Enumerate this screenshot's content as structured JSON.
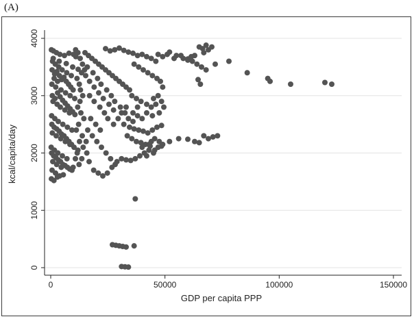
{
  "panel_label": "(A)",
  "chart_data": {
    "type": "scatter",
    "title": "",
    "xlabel": "GDP per capita PPP",
    "ylabel": "kcal/capita/day",
    "xlim": [
      0,
      150000
    ],
    "ylim": [
      0,
      4000
    ],
    "xticks": [
      0,
      50000,
      100000,
      150000
    ],
    "xtick_labels": [
      "0",
      "50000",
      "100000",
      "150000"
    ],
    "yticks": [
      0,
      1000,
      2000,
      3000,
      4000
    ],
    "ytick_labels": [
      "0",
      "1000",
      "2000",
      "3000",
      "4000"
    ],
    "grid": "horizontal",
    "marker_color": "#545454",
    "points": [
      [
        300,
        3800
      ],
      [
        1200,
        3780
      ],
      [
        2500,
        3750
      ],
      [
        4000,
        3720
      ],
      [
        6000,
        3700
      ],
      [
        8000,
        3740
      ],
      [
        10000,
        3720
      ],
      [
        11000,
        3680
      ],
      [
        800,
        3600
      ],
      [
        2000,
        3550
      ],
      [
        3500,
        3500
      ],
      [
        5000,
        3450
      ],
      [
        7000,
        3400
      ],
      [
        9000,
        3350
      ],
      [
        1500,
        3300
      ],
      [
        3000,
        3250
      ],
      [
        500,
        3200
      ],
      [
        2200,
        3150
      ],
      [
        4500,
        3100
      ],
      [
        6500,
        3050
      ],
      [
        8500,
        3000
      ],
      [
        10500,
        2950
      ],
      [
        1000,
        2900
      ],
      [
        2800,
        2850
      ],
      [
        4200,
        2800
      ],
      [
        6200,
        2750
      ],
      [
        8200,
        2700
      ],
      [
        400,
        2650
      ],
      [
        1800,
        2600
      ],
      [
        3300,
        2550
      ],
      [
        5300,
        2500
      ],
      [
        7300,
        2450
      ],
      [
        9300,
        2400
      ],
      [
        700,
        2350
      ],
      [
        2400,
        2300
      ],
      [
        4400,
        2250
      ],
      [
        6400,
        2200
      ],
      [
        8400,
        2150
      ],
      [
        200,
        2100
      ],
      [
        1600,
        2050
      ],
      [
        3100,
        2000
      ],
      [
        5100,
        1950
      ],
      [
        7100,
        1900
      ],
      [
        900,
        1850
      ],
      [
        2600,
        1800
      ],
      [
        4600,
        1750
      ],
      [
        600,
        1700
      ],
      [
        2100,
        1650
      ],
      [
        3900,
        1600
      ],
      [
        300,
        1550
      ],
      [
        1400,
        1520
      ],
      [
        2900,
        1580
      ],
      [
        5500,
        1620
      ],
      [
        1100,
        3650
      ],
      [
        3700,
        3600
      ],
      [
        6800,
        3560
      ],
      [
        9600,
        3500
      ],
      [
        12000,
        3460
      ],
      [
        13500,
        3400
      ],
      [
        11500,
        3300
      ],
      [
        12500,
        3200
      ],
      [
        13000,
        3100
      ],
      [
        14000,
        3000
      ],
      [
        12800,
        2900
      ],
      [
        11800,
        2800
      ],
      [
        13200,
        2700
      ],
      [
        14500,
        2600
      ],
      [
        12200,
        2500
      ],
      [
        11200,
        2400
      ],
      [
        13800,
        2300
      ],
      [
        12600,
        2200
      ],
      [
        14200,
        2100
      ],
      [
        11600,
        2000
      ],
      [
        10800,
        1900
      ],
      [
        12400,
        1800
      ],
      [
        13600,
        1900
      ],
      [
        11900,
        2050
      ],
      [
        9800,
        1750
      ],
      [
        15000,
        3750
      ],
      [
        16500,
        3700
      ],
      [
        18000,
        3650
      ],
      [
        19500,
        3600
      ],
      [
        21000,
        3550
      ],
      [
        22500,
        3500
      ],
      [
        24000,
        3450
      ],
      [
        25500,
        3400
      ],
      [
        27000,
        3350
      ],
      [
        28500,
        3300
      ],
      [
        30000,
        3250
      ],
      [
        31500,
        3200
      ],
      [
        33000,
        3150
      ],
      [
        34500,
        3100
      ],
      [
        16000,
        3500
      ],
      [
        18500,
        3400
      ],
      [
        20500,
        3300
      ],
      [
        22000,
        3200
      ],
      [
        24500,
        3100
      ],
      [
        26500,
        3000
      ],
      [
        28000,
        2900
      ],
      [
        30500,
        2800
      ],
      [
        32500,
        2700
      ],
      [
        17000,
        3000
      ],
      [
        19000,
        2900
      ],
      [
        21500,
        2800
      ],
      [
        23500,
        2700
      ],
      [
        25000,
        2600
      ],
      [
        27500,
        2500
      ],
      [
        16200,
        2400
      ],
      [
        18200,
        2300
      ],
      [
        20200,
        2200
      ],
      [
        22200,
        2100
      ],
      [
        24200,
        2000
      ],
      [
        26200,
        1900
      ],
      [
        28200,
        1800
      ],
      [
        17500,
        2600
      ],
      [
        19700,
        2500
      ],
      [
        21700,
        2400
      ],
      [
        15500,
        2200
      ],
      [
        15800,
        2000
      ],
      [
        16800,
        1850
      ],
      [
        18800,
        1700
      ],
      [
        20800,
        1650
      ],
      [
        22800,
        1600
      ],
      [
        24800,
        1650
      ],
      [
        26800,
        1750
      ],
      [
        29000,
        1850
      ],
      [
        31000,
        1900
      ],
      [
        33000,
        1880
      ],
      [
        35000,
        1870
      ],
      [
        37000,
        1900
      ],
      [
        39000,
        1950
      ],
      [
        41000,
        2000
      ],
      [
        43000,
        2050
      ],
      [
        45000,
        2000
      ],
      [
        47000,
        2100
      ],
      [
        24000,
        3820
      ],
      [
        26000,
        3780
      ],
      [
        28000,
        3800
      ],
      [
        30000,
        3830
      ],
      [
        32000,
        3790
      ],
      [
        34000,
        3760
      ],
      [
        36000,
        3740
      ],
      [
        38000,
        3700
      ],
      [
        40000,
        3720
      ],
      [
        42000,
        3680
      ],
      [
        44000,
        3650
      ],
      [
        46000,
        3600
      ],
      [
        36500,
        3550
      ],
      [
        38500,
        3500
      ],
      [
        40500,
        3450
      ],
      [
        42500,
        3400
      ],
      [
        44500,
        3350
      ],
      [
        46500,
        3300
      ],
      [
        48000,
        3250
      ],
      [
        49000,
        3150
      ],
      [
        47000,
        3000
      ],
      [
        45000,
        2950
      ],
      [
        48500,
        2900
      ],
      [
        46000,
        2850
      ],
      [
        49500,
        2800
      ],
      [
        44000,
        2800
      ],
      [
        42000,
        2850
      ],
      [
        38000,
        2800
      ],
      [
        36000,
        2700
      ],
      [
        34000,
        2600
      ],
      [
        32000,
        2500
      ],
      [
        34500,
        2450
      ],
      [
        36500,
        2420
      ],
      [
        38500,
        2400
      ],
      [
        40500,
        2380
      ],
      [
        42500,
        2350
      ],
      [
        44500,
        2400
      ],
      [
        46500,
        2450
      ],
      [
        48500,
        2480
      ],
      [
        45500,
        2250
      ],
      [
        47500,
        2200
      ],
      [
        49000,
        2150
      ],
      [
        33500,
        2300
      ],
      [
        35500,
        2250
      ],
      [
        37500,
        2200
      ],
      [
        39500,
        2180
      ],
      [
        41500,
        2150
      ],
      [
        43500,
        2120
      ],
      [
        42000,
        1950
      ],
      [
        40000,
        2100
      ],
      [
        44000,
        2200
      ],
      [
        35500,
        3000
      ],
      [
        37500,
        2950
      ],
      [
        39500,
        2900
      ],
      [
        37000,
        1200
      ],
      [
        27000,
        400
      ],
      [
        28500,
        390
      ],
      [
        30000,
        380
      ],
      [
        31500,
        370
      ],
      [
        33000,
        360
      ],
      [
        36500,
        380
      ],
      [
        31000,
        20
      ],
      [
        32500,
        15
      ],
      [
        34000,
        10
      ],
      [
        47000,
        3720
      ],
      [
        52000,
        3760
      ],
      [
        55000,
        3700
      ],
      [
        58000,
        3650
      ],
      [
        60000,
        3620
      ],
      [
        62000,
        3600
      ],
      [
        64000,
        3550
      ],
      [
        66000,
        3500
      ],
      [
        68000,
        3450
      ],
      [
        64500,
        3280
      ],
      [
        65500,
        3200
      ],
      [
        67000,
        3750
      ],
      [
        69000,
        3800
      ],
      [
        70500,
        3850
      ],
      [
        72000,
        3550
      ],
      [
        78000,
        3600
      ],
      [
        86000,
        3400
      ],
      [
        95000,
        3300
      ],
      [
        96000,
        3250
      ],
      [
        105000,
        3200
      ],
      [
        120000,
        3230
      ],
      [
        123000,
        3200
      ],
      [
        52000,
        2200
      ],
      [
        56000,
        2250
      ],
      [
        60000,
        2240
      ],
      [
        63000,
        2200
      ],
      [
        65000,
        2180
      ],
      [
        67000,
        2300
      ],
      [
        69000,
        2250
      ],
      [
        71000,
        2280
      ],
      [
        73000,
        2300
      ],
      [
        48500,
        2120
      ],
      [
        45500,
        2050
      ],
      [
        43000,
        2150
      ],
      [
        65000,
        3850
      ],
      [
        66500,
        3820
      ],
      [
        68000,
        3880
      ],
      [
        63000,
        3700
      ],
      [
        61500,
        3680
      ],
      [
        60000,
        3640
      ],
      [
        57000,
        3700
      ],
      [
        54000,
        3650
      ],
      [
        51000,
        3720
      ],
      [
        49000,
        3680
      ],
      [
        47500,
        2700
      ],
      [
        44500,
        2650
      ],
      [
        42000,
        2700
      ],
      [
        40000,
        2600
      ],
      [
        38000,
        2650
      ],
      [
        36000,
        2550
      ],
      [
        33000,
        2800
      ],
      [
        31000,
        2700
      ],
      [
        29500,
        2600
      ],
      [
        27500,
        2750
      ],
      [
        25500,
        2850
      ],
      [
        23000,
        2950
      ],
      [
        21000,
        3050
      ],
      [
        19000,
        3150
      ],
      [
        17000,
        3250
      ],
      [
        15300,
        3350
      ],
      [
        14800,
        3450
      ],
      [
        13900,
        3550
      ],
      [
        12900,
        3650
      ],
      [
        11900,
        3750
      ],
      [
        10900,
        3800
      ],
      [
        600,
        3450
      ],
      [
        1700,
        3380
      ],
      [
        2700,
        3420
      ],
      [
        3800,
        3350
      ],
      [
        4800,
        3280
      ],
      [
        5800,
        3320
      ],
      [
        6800,
        3250
      ],
      [
        7800,
        3200
      ],
      [
        8800,
        3150
      ],
      [
        9800,
        3100
      ],
      [
        700,
        3000
      ],
      [
        1900,
        2950
      ],
      [
        3000,
        3050
      ],
      [
        4100,
        2980
      ],
      [
        5200,
        2920
      ],
      [
        6300,
        2870
      ],
      [
        7400,
        2820
      ],
      [
        8500,
        2770
      ],
      [
        9600,
        2720
      ],
      [
        10600,
        2670
      ],
      [
        500,
        2500
      ],
      [
        1500,
        2450
      ],
      [
        2600,
        2420
      ],
      [
        3700,
        2380
      ],
      [
        4700,
        2330
      ],
      [
        5800,
        2300
      ],
      [
        6900,
        2250
      ],
      [
        8000,
        2200
      ],
      [
        9100,
        2150
      ],
      [
        10200,
        2100
      ],
      [
        400,
        2000
      ],
      [
        1300,
        1950
      ],
      [
        2300,
        1920
      ],
      [
        3300,
        1880
      ],
      [
        4300,
        1850
      ],
      [
        5300,
        1800
      ],
      [
        6300,
        1780
      ],
      [
        7300,
        1750
      ],
      [
        8300,
        1720
      ],
      [
        9300,
        1700
      ]
    ]
  }
}
